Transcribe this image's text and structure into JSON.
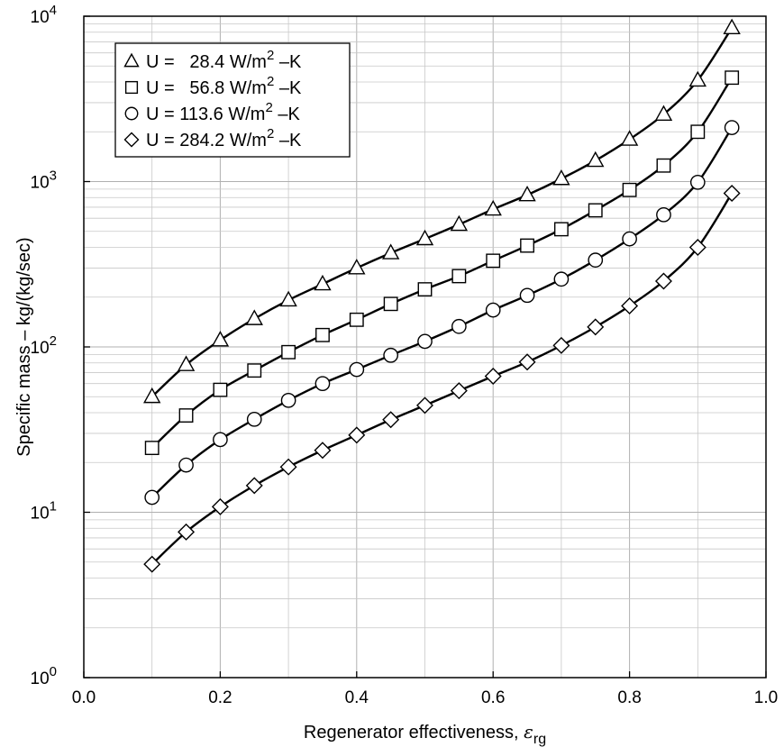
{
  "chart_data": {
    "type": "line",
    "xlabel": "Regenerator effectiveness, ",
    "xlabel_symbol": "ε",
    "xlabel_subscript": "rg",
    "ylabel": "Specific mass – kg/(kg/sec)",
    "xlim": [
      0.0,
      1.0
    ],
    "ylim": [
      1,
      10000
    ],
    "y_scale": "log",
    "x_ticks": [
      "0.0",
      "0.2",
      "0.4",
      "0.6",
      "0.8",
      "1.0"
    ],
    "x_tick_values": [
      0.0,
      0.2,
      0.4,
      0.6,
      0.8,
      1.0
    ],
    "y_ticks": [
      {
        "value": 1,
        "base": "10",
        "exp": "0"
      },
      {
        "value": 10,
        "base": "10",
        "exp": "1"
      },
      {
        "value": 100,
        "base": "10",
        "exp": "2"
      },
      {
        "value": 1000,
        "base": "10",
        "exp": "3"
      },
      {
        "value": 10000,
        "base": "10",
        "exp": "4"
      }
    ],
    "grid": true,
    "legend_position": "top-left",
    "x": [
      0.1,
      0.15,
      0.2,
      0.25,
      0.3,
      0.35,
      0.4,
      0.45,
      0.5,
      0.55,
      0.6,
      0.65,
      0.7,
      0.75,
      0.8,
      0.85,
      0.9,
      0.95
    ],
    "series": [
      {
        "name": "U =   28.4 W/m",
        "sup": "2",
        "unit_tail": " –K",
        "marker": "triangle",
        "values": [
          50,
          78,
          110,
          148,
          192,
          240,
          300,
          370,
          450,
          550,
          680,
          830,
          1040,
          1340,
          1800,
          2550,
          4100,
          8500
        ]
      },
      {
        "name": "U =   56.8 W/m",
        "sup": "2",
        "unit_tail": " –K",
        "marker": "square",
        "values": [
          24.5,
          38.5,
          55,
          72,
          93,
          118,
          146,
          182,
          223,
          268,
          332,
          410,
          515,
          670,
          890,
          1250,
          2000,
          4250
        ]
      },
      {
        "name": "U = 113.6 W/m",
        "sup": "2",
        "unit_tail": " –K",
        "marker": "circle",
        "values": [
          12.3,
          19.3,
          27.5,
          36.5,
          47.5,
          60,
          73,
          89,
          108,
          133,
          167,
          205,
          257,
          335,
          450,
          630,
          990,
          2120
        ]
      },
      {
        "name": "U = 284.2 W/m",
        "sup": "2",
        "unit_tail": " –K",
        "marker": "diamond",
        "values": [
          4.85,
          7.6,
          10.8,
          14.5,
          18.8,
          23.7,
          29.3,
          36.3,
          44.3,
          54.3,
          66.5,
          81,
          102,
          132,
          177,
          250,
          400,
          850
        ]
      }
    ]
  }
}
